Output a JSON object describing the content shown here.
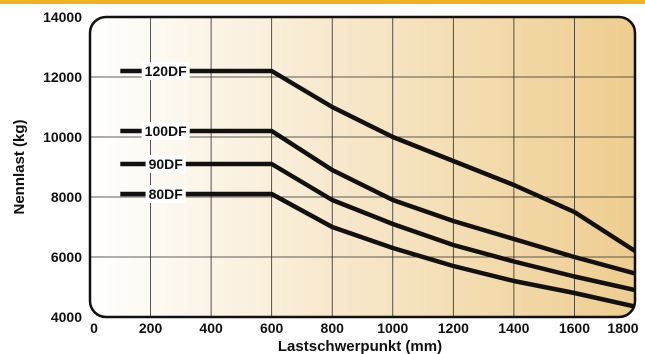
{
  "chart_data": {
    "type": "line",
    "title": "",
    "xlabel": "Lastschwerpunkt (mm)",
    "ylabel": "Nennlast (kg)",
    "xlim": [
      0,
      1800
    ],
    "ylim": [
      4000,
      14000
    ],
    "xticks": [
      0,
      200,
      400,
      600,
      800,
      1000,
      1200,
      1400,
      1600,
      1800
    ],
    "yticks": [
      4000,
      6000,
      8000,
      10000,
      12000,
      14000
    ],
    "grid": true,
    "legend": "none",
    "colors": {
      "accent_bar": "#f2b11e",
      "gradient_start": "#ffffff",
      "gradient_end": "#eecd8e",
      "line": "#111111",
      "grid": "#2a2a2a"
    },
    "series": [
      {
        "name": "120DF",
        "x": [
          100,
          600,
          800,
          1000,
          1200,
          1400,
          1600,
          1800
        ],
        "y": [
          12200,
          12200,
          11000,
          10000,
          9200,
          8400,
          7500,
          6200
        ],
        "label_x": 250
      },
      {
        "name": "100DF",
        "x": [
          100,
          600,
          800,
          1000,
          1200,
          1400,
          1600,
          1800
        ],
        "y": [
          10200,
          10200,
          8900,
          7900,
          7200,
          6600,
          6000,
          5450
        ],
        "label_x": 250
      },
      {
        "name": "90DF",
        "x": [
          100,
          600,
          800,
          1000,
          1200,
          1400,
          1600,
          1800
        ],
        "y": [
          9100,
          9100,
          7900,
          7100,
          6400,
          5850,
          5350,
          4900
        ],
        "label_x": 250
      },
      {
        "name": "80DF",
        "x": [
          100,
          600,
          800,
          1000,
          1200,
          1400,
          1600,
          1800
        ],
        "y": [
          8100,
          8100,
          7000,
          6300,
          5700,
          5200,
          4800,
          4350
        ],
        "label_x": 250
      }
    ]
  }
}
